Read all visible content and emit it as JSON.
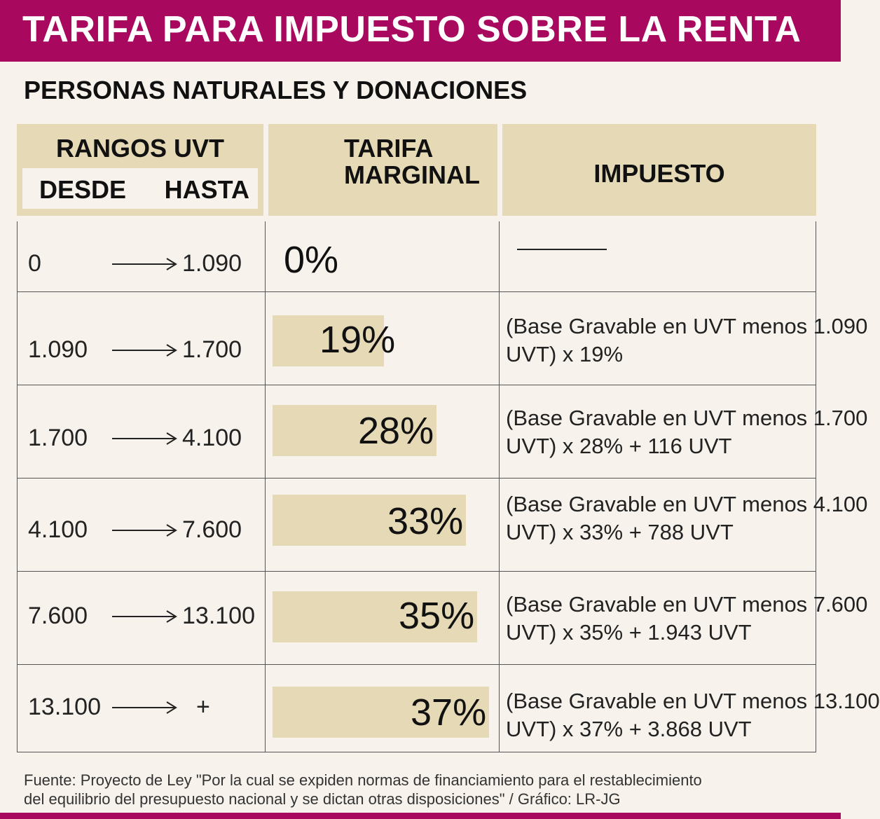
{
  "title": "TARIFA PARA IMPUESTO SOBRE LA RENTA",
  "subtitle": "PERSONAS NATURALES Y DONACIONES",
  "headers": {
    "ranges": "RANGOS UVT",
    "desde": "DESDE",
    "hasta": "HASTA",
    "tarifa_line1": "TARIFA",
    "tarifa_line2": "MARGINAL",
    "impuesto": "IMPUESTO"
  },
  "chart_data": {
    "type": "table",
    "title": "TARIFA PARA IMPUESTO SOBRE LA RENTA",
    "subtitle": "PERSONAS NATURALES Y DONACIONES",
    "columns": [
      "RANGOS UVT DESDE",
      "RANGOS UVT HASTA",
      "TARIFA MARGINAL",
      "IMPUESTO"
    ],
    "rows": [
      {
        "desde": "0",
        "hasta": "1.090",
        "tarifa": "0%",
        "rate": 0,
        "impuesto_l1": "",
        "impuesto_l2": ""
      },
      {
        "desde": "1.090",
        "hasta": "1.700",
        "tarifa": "19%",
        "rate": 19,
        "impuesto_l1": "(Base Gravable en UVT menos 1.090",
        "impuesto_l2": "UVT) x 19%"
      },
      {
        "desde": "1.700",
        "hasta": "4.100",
        "tarifa": "28%",
        "rate": 28,
        "impuesto_l1": "(Base Gravable en UVT menos 1.700",
        "impuesto_l2": "UVT) x 28% + 116 UVT"
      },
      {
        "desde": "4.100",
        "hasta": "7.600",
        "tarifa": "33%",
        "rate": 33,
        "impuesto_l1": "(Base Gravable en UVT menos 4.100",
        "impuesto_l2": "UVT) x 33% + 788 UVT"
      },
      {
        "desde": "7.600",
        "hasta": "13.100",
        "tarifa": "35%",
        "rate": 35,
        "impuesto_l1": "(Base Gravable en UVT menos 7.600",
        "impuesto_l2": "UVT) x 35% + 1.943 UVT"
      },
      {
        "desde": "13.100",
        "hasta": "+",
        "tarifa": "37%",
        "rate": 37,
        "impuesto_l1": "(Base Gravable en UVT menos 13.100",
        "impuesto_l2": "UVT) x 37% + 3.868 UVT"
      }
    ]
  },
  "source_line1": "Fuente: Proyecto de Ley \"Por la cual se expiden normas de financiamiento para el restablecimiento",
  "source_line2": "del equilibrio del presupuesto nacional y se dictan otras disposiciones\" / Gráfico: LR-JG",
  "colors": {
    "brand": "#a8095f",
    "bar": "#e6d9b6",
    "background": "#f7f3ec"
  }
}
